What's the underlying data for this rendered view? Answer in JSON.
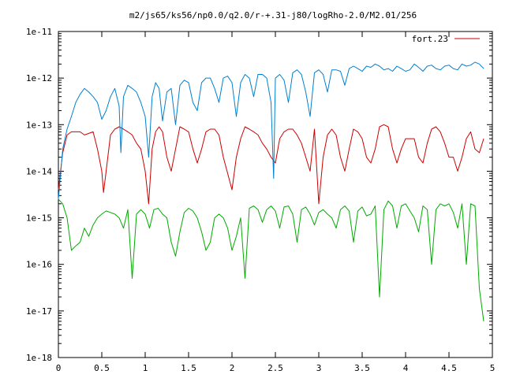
{
  "chart_data": {
    "type": "line",
    "title": "m2/js65/ks56/np0.0/q2.0/r-+.31-j80/logRho-2.0/M2.01/256",
    "xlabel": "",
    "ylabel": "",
    "xlim": [
      0,
      5
    ],
    "ylim": [
      1e-18,
      1e-11
    ],
    "yscale": "log",
    "grid": false,
    "legend": "top-right",
    "x_ticks": [
      {
        "value": 0,
        "label": "0"
      },
      {
        "value": 0.5,
        "label": "0.5"
      },
      {
        "value": 1,
        "label": "1"
      },
      {
        "value": 1.5,
        "label": "1.5"
      },
      {
        "value": 2,
        "label": "2"
      },
      {
        "value": 2.5,
        "label": "2.5"
      },
      {
        "value": 3,
        "label": "3"
      },
      {
        "value": 3.5,
        "label": "3.5"
      },
      {
        "value": 4,
        "label": "4"
      },
      {
        "value": 4.5,
        "label": "4.5"
      },
      {
        "value": 5,
        "label": "5"
      }
    ],
    "y_ticks": [
      {
        "value": 1e-18,
        "label": "1e-18"
      },
      {
        "value": 1e-17,
        "label": "1e-17"
      },
      {
        "value": 1e-16,
        "label": "1e-16"
      },
      {
        "value": 1e-15,
        "label": "1e-15"
      },
      {
        "value": 1e-14,
        "label": "1e-14"
      },
      {
        "value": 1e-13,
        "label": "1e-13"
      },
      {
        "value": 1e-12,
        "label": "1e-12"
      },
      {
        "value": 1e-11,
        "label": "1e-11"
      }
    ],
    "series": [
      {
        "name": "fort.23",
        "color": "#cc0000",
        "x": [
          0,
          0.05,
          0.1,
          0.15,
          0.2,
          0.25,
          0.3,
          0.35,
          0.4,
          0.45,
          0.5,
          0.52,
          0.55,
          0.6,
          0.65,
          0.7,
          0.75,
          0.8,
          0.85,
          0.9,
          0.95,
          1.0,
          1.04,
          1.08,
          1.12,
          1.16,
          1.2,
          1.25,
          1.3,
          1.35,
          1.4,
          1.45,
          1.5,
          1.55,
          1.6,
          1.65,
          1.7,
          1.75,
          1.8,
          1.85,
          1.9,
          1.95,
          2.0,
          2.05,
          2.1,
          2.15,
          2.2,
          2.25,
          2.3,
          2.35,
          2.4,
          2.45,
          2.5,
          2.55,
          2.6,
          2.65,
          2.7,
          2.75,
          2.8,
          2.85,
          2.9,
          2.95,
          3.0,
          3.05,
          3.1,
          3.15,
          3.2,
          3.25,
          3.3,
          3.35,
          3.4,
          3.45,
          3.5,
          3.55,
          3.6,
          3.65,
          3.7,
          3.75,
          3.8,
          3.85,
          3.9,
          3.95,
          4.0,
          4.05,
          4.1,
          4.15,
          4.2,
          4.25,
          4.3,
          4.35,
          4.4,
          4.45,
          4.5,
          4.55,
          4.6,
          4.65,
          4.7,
          4.75,
          4.8,
          4.85,
          4.9
        ],
        "y": [
          4e-15,
          2.5e-14,
          6e-14,
          7e-14,
          7e-14,
          7e-14,
          6e-14,
          6.5e-14,
          7e-14,
          3e-14,
          1e-14,
          3.5e-15,
          1e-14,
          6e-14,
          8e-14,
          9e-14,
          8e-14,
          7e-14,
          6e-14,
          4e-14,
          3e-14,
          1e-14,
          2e-15,
          3e-14,
          7e-14,
          9e-14,
          7e-14,
          2e-14,
          1e-14,
          3e-14,
          9e-14,
          8e-14,
          7e-14,
          3e-14,
          1.5e-14,
          3e-14,
          7e-14,
          8e-14,
          8e-14,
          6e-14,
          2e-14,
          9e-15,
          4e-15,
          2e-14,
          5e-14,
          9e-14,
          8e-14,
          7e-14,
          6e-14,
          4e-14,
          3e-14,
          2e-14,
          1.5e-14,
          5e-14,
          7e-14,
          8e-14,
          8e-14,
          6e-14,
          4e-14,
          2e-14,
          1e-14,
          8e-14,
          2e-15,
          2e-14,
          6e-14,
          8e-14,
          6e-14,
          2e-14,
          1e-14,
          3e-14,
          8e-14,
          7e-14,
          5e-14,
          2e-14,
          1.5e-14,
          3e-14,
          9e-14,
          1e-13,
          9e-14,
          3e-14,
          1.5e-14,
          3e-14,
          5e-14,
          5e-14,
          5e-14,
          2e-14,
          1.5e-14,
          4e-14,
          8e-14,
          9e-14,
          7e-14,
          4e-14,
          2e-14,
          2e-14,
          1e-14,
          2e-14,
          5e-14,
          7e-14,
          3e-14,
          2.5e-14,
          5e-14
        ]
      },
      {
        "color": "#0080d0",
        "x": [
          0,
          0.05,
          0.1,
          0.15,
          0.2,
          0.25,
          0.3,
          0.35,
          0.4,
          0.45,
          0.5,
          0.55,
          0.6,
          0.65,
          0.7,
          0.72,
          0.75,
          0.8,
          0.85,
          0.9,
          0.95,
          1.0,
          1.04,
          1.08,
          1.12,
          1.16,
          1.2,
          1.25,
          1.3,
          1.35,
          1.4,
          1.45,
          1.5,
          1.55,
          1.6,
          1.65,
          1.7,
          1.75,
          1.8,
          1.85,
          1.9,
          1.95,
          2.0,
          2.05,
          2.1,
          2.15,
          2.2,
          2.25,
          2.3,
          2.35,
          2.4,
          2.45,
          2.48,
          2.5,
          2.55,
          2.6,
          2.65,
          2.7,
          2.75,
          2.8,
          2.85,
          2.9,
          2.95,
          3.0,
          3.05,
          3.1,
          3.15,
          3.2,
          3.25,
          3.3,
          3.35,
          3.4,
          3.45,
          3.5,
          3.55,
          3.6,
          3.65,
          3.7,
          3.75,
          3.8,
          3.85,
          3.9,
          3.95,
          4.0,
          4.05,
          4.1,
          4.15,
          4.2,
          4.25,
          4.3,
          4.35,
          4.4,
          4.45,
          4.5,
          4.55,
          4.6,
          4.65,
          4.7,
          4.75,
          4.8,
          4.85,
          4.9
        ],
        "y": [
          2.5e-15,
          3e-14,
          8e-14,
          1.5e-13,
          3e-13,
          4.5e-13,
          6e-13,
          5e-13,
          4e-13,
          3e-13,
          1.3e-13,
          2e-13,
          4e-13,
          6e-13,
          2.5e-13,
          2.5e-14,
          4e-13,
          7e-13,
          6e-13,
          5e-13,
          3e-13,
          1.5e-13,
          2e-14,
          4e-13,
          8e-13,
          6e-13,
          1.2e-13,
          5e-13,
          6e-13,
          1e-13,
          7e-13,
          9e-13,
          8e-13,
          3e-13,
          2e-13,
          8e-13,
          1e-12,
          1e-12,
          6e-13,
          3e-13,
          1e-12,
          1.1e-12,
          8e-13,
          1.5e-13,
          8e-13,
          1.2e-12,
          1e-12,
          4e-13,
          1.2e-12,
          1.2e-12,
          1e-12,
          3e-13,
          7e-15,
          1e-12,
          1.2e-12,
          9e-13,
          3e-13,
          1.3e-12,
          1.5e-12,
          1.2e-12,
          5e-13,
          1.5e-13,
          1.3e-12,
          1.5e-12,
          1.2e-12,
          5e-13,
          1.5e-12,
          1.5e-12,
          1.4e-12,
          7e-13,
          1.6e-12,
          1.8e-12,
          1.6e-12,
          1.4e-12,
          1.8e-12,
          1.7e-12,
          2e-12,
          1.8e-12,
          1.5e-12,
          1.6e-12,
          1.4e-12,
          1.8e-12,
          1.6e-12,
          1.4e-12,
          1.5e-12,
          2e-12,
          1.7e-12,
          1.4e-12,
          1.8e-12,
          1.9e-12,
          1.6e-12,
          1.5e-12,
          1.8e-12,
          1.9e-12,
          1.6e-12,
          1.5e-12,
          2e-12,
          1.8e-12,
          1.9e-12,
          2.2e-12,
          2e-12,
          1.6e-12
        ]
      },
      {
        "color": "#00aa00",
        "x": [
          0,
          0.05,
          0.1,
          0.15,
          0.2,
          0.25,
          0.3,
          0.35,
          0.4,
          0.45,
          0.5,
          0.55,
          0.6,
          0.65,
          0.7,
          0.75,
          0.8,
          0.85,
          0.9,
          0.95,
          1.0,
          1.05,
          1.1,
          1.15,
          1.2,
          1.25,
          1.3,
          1.35,
          1.4,
          1.45,
          1.5,
          1.55,
          1.6,
          1.65,
          1.7,
          1.75,
          1.8,
          1.85,
          1.9,
          1.95,
          2.0,
          2.05,
          2.1,
          2.15,
          2.2,
          2.25,
          2.3,
          2.35,
          2.4,
          2.45,
          2.5,
          2.55,
          2.6,
          2.65,
          2.7,
          2.75,
          2.8,
          2.85,
          2.9,
          2.95,
          3.0,
          3.05,
          3.1,
          3.15,
          3.2,
          3.25,
          3.3,
          3.35,
          3.4,
          3.45,
          3.5,
          3.55,
          3.6,
          3.65,
          3.7,
          3.75,
          3.8,
          3.85,
          3.9,
          3.95,
          4.0,
          4.05,
          4.1,
          4.15,
          4.2,
          4.25,
          4.3,
          4.35,
          4.4,
          4.45,
          4.5,
          4.55,
          4.6,
          4.65,
          4.7,
          4.75,
          4.8,
          4.85,
          4.9
        ],
        "y": [
          2.5e-15,
          2e-15,
          1e-15,
          2e-16,
          2.5e-16,
          3e-16,
          6e-16,
          4e-16,
          7e-16,
          1e-15,
          1.2e-15,
          1.4e-15,
          1.3e-15,
          1.2e-15,
          1e-15,
          6e-16,
          1.5e-15,
          5e-17,
          1.2e-15,
          1.5e-15,
          1.2e-15,
          6e-16,
          1.5e-15,
          1.6e-15,
          1.2e-15,
          1e-15,
          3e-16,
          1.5e-16,
          5e-16,
          1.3e-15,
          1.6e-15,
          1.4e-15,
          1e-15,
          5e-16,
          2e-16,
          3e-16,
          1e-15,
          1.2e-15,
          1e-15,
          6e-16,
          2e-16,
          4e-16,
          1e-15,
          5e-17,
          1.6e-15,
          1.8e-15,
          1.5e-15,
          8e-16,
          1.5e-15,
          1.8e-15,
          1.4e-15,
          6e-16,
          1.7e-15,
          1.8e-15,
          1.2e-15,
          3e-16,
          1.5e-15,
          1.7e-15,
          1.2e-15,
          7e-16,
          1.3e-15,
          1.5e-15,
          1.2e-15,
          1e-15,
          6e-16,
          1.5e-15,
          1.8e-15,
          1.4e-15,
          3e-16,
          1.4e-15,
          1.7e-15,
          1.1e-15,
          1.2e-15,
          1.8e-15,
          2e-17,
          1.5e-15,
          2.3e-15,
          1.8e-15,
          6e-16,
          1.8e-15,
          2e-15,
          1.4e-15,
          1e-15,
          5e-16,
          1.8e-15,
          1.5e-15,
          1e-16,
          1.5e-15,
          2e-15,
          1.8e-15,
          2e-15,
          1.3e-15,
          6e-16,
          2e-15,
          1e-16,
          2e-15,
          1.8e-15,
          3e-17,
          6e-18
        ]
      }
    ]
  }
}
